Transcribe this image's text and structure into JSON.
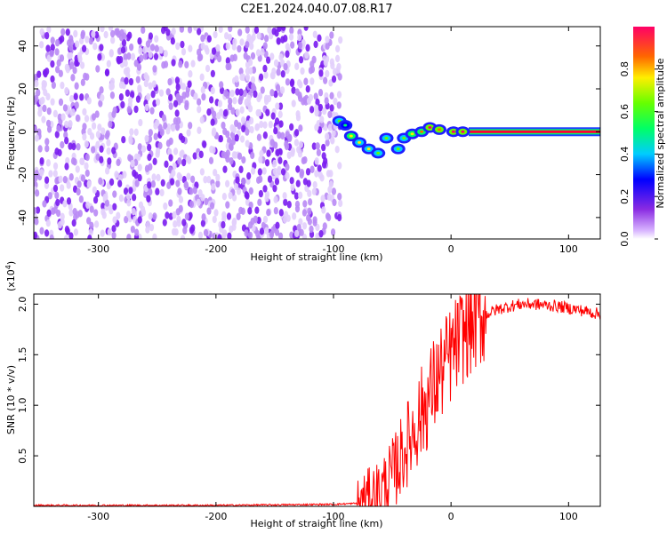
{
  "title": "C2E1.2024.040.07.08.R17",
  "chart_data": [
    {
      "type": "heatmap",
      "xlabel": "Height of straight line (km)",
      "ylabel": "Frequency (Hz)",
      "xlim": [
        -355,
        127
      ],
      "ylim": [
        -50,
        49
      ],
      "x_ticks": [
        -300,
        -200,
        -100,
        0,
        100
      ],
      "y_ticks": [
        -40,
        -20,
        0,
        20,
        40
      ],
      "noise_region_x": [
        -355,
        -100
      ],
      "tone_band": {
        "x_start": 15,
        "x_end": 127,
        "frequency": 0
      },
      "features": [
        {
          "x": -95,
          "y": 5,
          "amplitude": 0.45
        },
        {
          "x": -90,
          "y": 3,
          "amplitude": 0.3
        },
        {
          "x": -85,
          "y": -2,
          "amplitude": 0.55
        },
        {
          "x": -78,
          "y": -5,
          "amplitude": 0.5
        },
        {
          "x": -70,
          "y": -8,
          "amplitude": 0.5
        },
        {
          "x": -62,
          "y": -10,
          "amplitude": 0.45
        },
        {
          "x": -55,
          "y": -3,
          "amplitude": 0.45
        },
        {
          "x": -45,
          "y": -8,
          "amplitude": 0.4
        },
        {
          "x": -40,
          "y": -3,
          "amplitude": 0.4
        },
        {
          "x": -33,
          "y": -1,
          "amplitude": 0.55
        },
        {
          "x": -25,
          "y": 0,
          "amplitude": 0.6
        },
        {
          "x": -18,
          "y": 2,
          "amplitude": 0.7
        },
        {
          "x": -10,
          "y": 1,
          "amplitude": 0.65
        },
        {
          "x": 2,
          "y": 0,
          "amplitude": 0.7
        },
        {
          "x": 10,
          "y": 0,
          "amplitude": 0.7
        }
      ]
    },
    {
      "type": "line",
      "xlabel": "Height of straight line (km)",
      "ylabel": "SNR (10 * v/v)",
      "scale_label": "(x10",
      "scale_exp": "4",
      "scale_close": ")",
      "xlim": [
        -355,
        127
      ],
      "ylim": [
        0,
        2.1
      ],
      "x_ticks": [
        -300,
        -200,
        -100,
        0,
        100
      ],
      "y_ticks": [
        0.5,
        1.0,
        1.5,
        2.0
      ],
      "series": [
        {
          "color": "#ff0000",
          "x": [
            -355,
            -200,
            -100,
            -80,
            -60,
            -50,
            -40,
            -30,
            -20,
            -10,
            0,
            10,
            20,
            30,
            40,
            50,
            60,
            70,
            80,
            90,
            100,
            110,
            127
          ],
          "y": [
            0.01,
            0.01,
            0.02,
            0.03,
            0.15,
            0.3,
            0.55,
            0.8,
            1.05,
            1.3,
            1.5,
            1.7,
            1.82,
            1.9,
            1.95,
            1.98,
            2.0,
            2.0,
            1.99,
            1.98,
            1.96,
            1.94,
            1.9
          ]
        }
      ]
    }
  ],
  "colorbar": {
    "label": "Normalized spectral amplitude",
    "ticks": [
      0.0,
      0.2,
      0.4,
      0.6,
      0.8
    ],
    "range": [
      0,
      1
    ]
  }
}
